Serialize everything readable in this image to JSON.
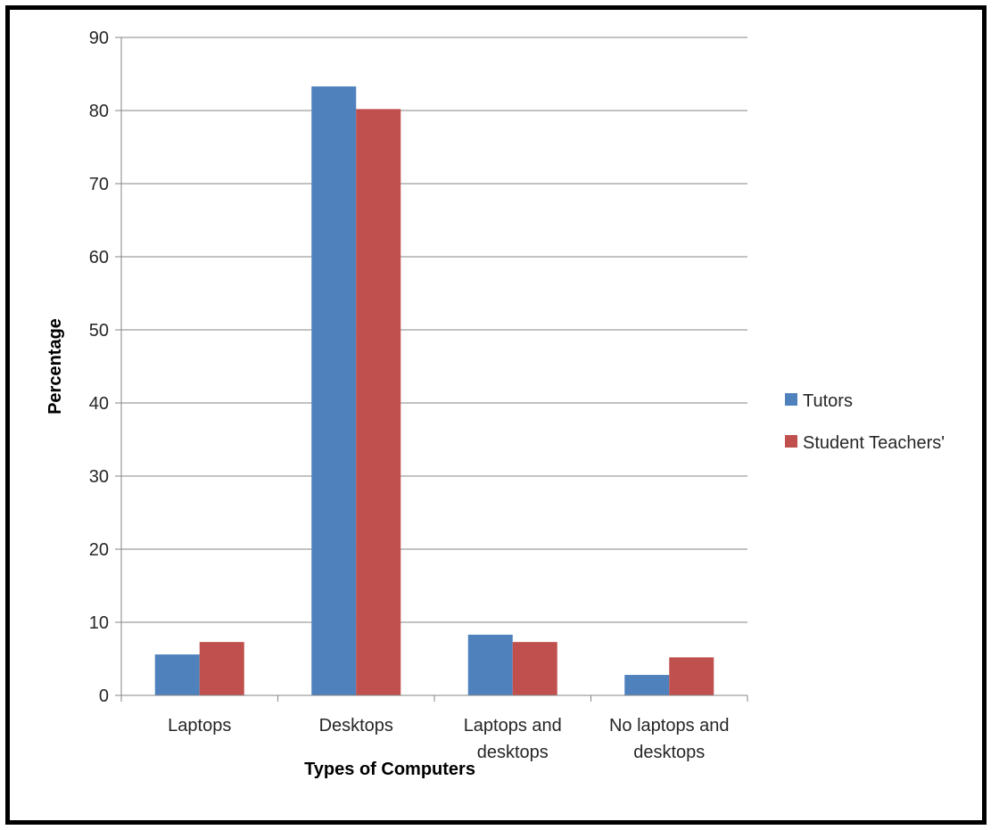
{
  "chart_data": {
    "type": "bar",
    "title": "",
    "xlabel": "Types of Computers",
    "ylabel": "Percentage",
    "ylim": [
      0,
      90
    ],
    "yticks": [
      0,
      10,
      20,
      30,
      40,
      50,
      60,
      70,
      80,
      90
    ],
    "grid": true,
    "legend_position": "right",
    "categories": [
      [
        "Laptops"
      ],
      [
        "Desktops"
      ],
      [
        "Laptops and",
        "desktops"
      ],
      [
        "No laptops and",
        "desktops"
      ]
    ],
    "series": [
      {
        "name": "Tutors",
        "color": "#4F81BD",
        "values": [
          5.6,
          83.3,
          8.3,
          2.8
        ]
      },
      {
        "name": "Student Teachers'",
        "color": "#C0504D",
        "values": [
          7.3,
          80.2,
          7.3,
          5.2
        ]
      }
    ]
  }
}
